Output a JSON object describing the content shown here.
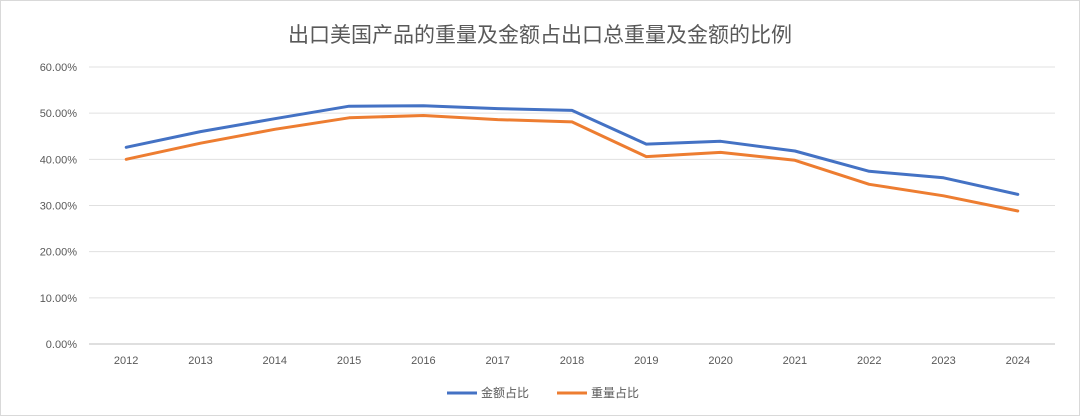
{
  "chart_data": {
    "type": "line",
    "title": "出口美国产品的重量及金额占出口总重量及金额的比例",
    "xlabel": "",
    "ylabel": "",
    "categories": [
      "2012",
      "2013",
      "2014",
      "2015",
      "2016",
      "2017",
      "2018",
      "2019",
      "2020",
      "2021",
      "2022",
      "2023",
      "2024"
    ],
    "ylim": [
      0,
      60
    ],
    "yticks": [
      "0.00%",
      "10.00%",
      "20.00%",
      "30.00%",
      "40.00%",
      "50.00%",
      "60.00%"
    ],
    "grid": true,
    "legend_position": "bottom",
    "series": [
      {
        "name": "金额占比",
        "color": "#4472C4",
        "values": [
          42.6,
          46.0,
          48.8,
          51.5,
          51.6,
          51.0,
          50.6,
          43.3,
          43.9,
          41.8,
          37.4,
          36.0,
          32.4
        ]
      },
      {
        "name": "重量占比",
        "color": "#ED7D31",
        "values": [
          40.0,
          43.5,
          46.5,
          49.0,
          49.5,
          48.6,
          48.1,
          40.6,
          41.5,
          39.8,
          34.6,
          32.1,
          28.8
        ]
      }
    ]
  }
}
